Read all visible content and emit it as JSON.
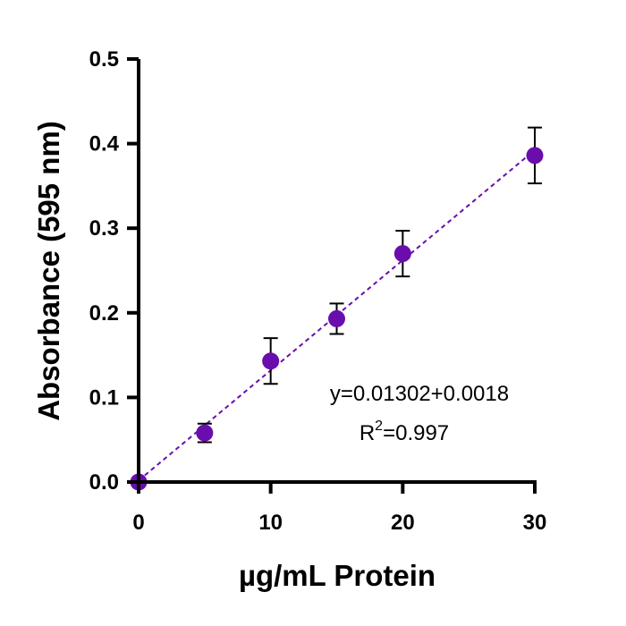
{
  "chart_data": {
    "type": "scatter",
    "xlabel": "µg/mL Protein",
    "ylabel": "Absorbance (595 nm)",
    "xlim": [
      0,
      30
    ],
    "ylim": [
      0,
      0.5
    ],
    "xticks": [
      0,
      10,
      20,
      30
    ],
    "xtick_labels": [
      "0",
      "10",
      "20",
      "30"
    ],
    "yticks": [
      0,
      0.1,
      0.2,
      0.3,
      0.4,
      0.5
    ],
    "ytick_labels": [
      "0.0",
      "0.1",
      "0.2",
      "0.3",
      "0.4",
      "0.5"
    ],
    "grid": false,
    "series": [
      {
        "x": [
          0,
          5,
          10,
          15,
          20,
          30
        ],
        "y": [
          0.0,
          0.058,
          0.143,
          0.193,
          0.27,
          0.386
        ],
        "error": [
          0.0,
          0.011,
          0.027,
          0.018,
          0.027,
          0.033
        ],
        "color": "#6a0dad"
      }
    ],
    "fit_line": {
      "slope": 0.01302,
      "intercept": 0.0018,
      "x_range": [
        0,
        30
      ],
      "style": "dashed",
      "color": "#6a0dad"
    },
    "annotation": {
      "equation": "y=0.01302+0.0018",
      "r2_prefix": "R",
      "r2_superscript": "2",
      "r2_value": "=0.997"
    }
  }
}
